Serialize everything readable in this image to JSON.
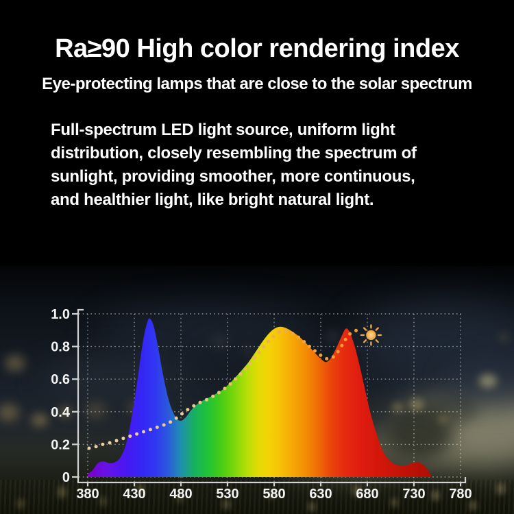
{
  "page": {
    "title": "Ra≥90 High color rendering index",
    "subtitle": "Eye-protecting lamps that are close to the solar spectrum",
    "body_lines": [
      "Full-spectrum LED light source, uniform light",
      "distribution, closely resembling the spectrum of",
      "sunlight, providing smoother, more continuous,",
      "and healthier light, like bright natural light."
    ]
  },
  "chart_data": {
    "type": "area",
    "title": "",
    "xlabel": "",
    "ylabel": "",
    "xlim": [
      380,
      780
    ],
    "ylim": [
      0,
      1.0
    ],
    "grid": true,
    "x_tick_labels": [
      "380",
      "430",
      "480",
      "530",
      "580",
      "630",
      "680",
      "730",
      "780"
    ],
    "x_tick_values": [
      380,
      430,
      480,
      530,
      580,
      630,
      680,
      730,
      780
    ],
    "y_tick_labels": [
      "1.0",
      "0.8",
      "0.6",
      "0.4",
      "0.2",
      "0"
    ],
    "y_tick_values": [
      1.0,
      0.8,
      0.6,
      0.4,
      0.2,
      0
    ],
    "series": [
      {
        "name": "led-full-spectrum",
        "type": "area",
        "fill": "spectrum-gradient",
        "points": [
          [
            380,
            0.02
          ],
          [
            385,
            0.04
          ],
          [
            391,
            0.085
          ],
          [
            397,
            0.095
          ],
          [
            403,
            0.085
          ],
          [
            409,
            0.09
          ],
          [
            415,
            0.12
          ],
          [
            421,
            0.2
          ],
          [
            427,
            0.36
          ],
          [
            433,
            0.58
          ],
          [
            439,
            0.82
          ],
          [
            444,
            0.95
          ],
          [
            447,
            0.97
          ],
          [
            451,
            0.92
          ],
          [
            456,
            0.78
          ],
          [
            461,
            0.62
          ],
          [
            467,
            0.47
          ],
          [
            473,
            0.38
          ],
          [
            479,
            0.345
          ],
          [
            485,
            0.365
          ],
          [
            491,
            0.41
          ],
          [
            497,
            0.445
          ],
          [
            504,
            0.47
          ],
          [
            511,
            0.49
          ],
          [
            519,
            0.515
          ],
          [
            527,
            0.545
          ],
          [
            535,
            0.59
          ],
          [
            543,
            0.64
          ],
          [
            552,
            0.7
          ],
          [
            561,
            0.775
          ],
          [
            570,
            0.85
          ],
          [
            578,
            0.9
          ],
          [
            585,
            0.92
          ],
          [
            592,
            0.915
          ],
          [
            600,
            0.89
          ],
          [
            608,
            0.855
          ],
          [
            616,
            0.81
          ],
          [
            624,
            0.76
          ],
          [
            631,
            0.72
          ],
          [
            636,
            0.705
          ],
          [
            641,
            0.73
          ],
          [
            647,
            0.795
          ],
          [
            653,
            0.87
          ],
          [
            657,
            0.91
          ],
          [
            661,
            0.89
          ],
          [
            666,
            0.81
          ],
          [
            671,
            0.7
          ],
          [
            677,
            0.55
          ],
          [
            683,
            0.4
          ],
          [
            689,
            0.28
          ],
          [
            695,
            0.18
          ],
          [
            701,
            0.12
          ],
          [
            707,
            0.085
          ],
          [
            714,
            0.07
          ],
          [
            721,
            0.07
          ],
          [
            728,
            0.085
          ],
          [
            735,
            0.09
          ],
          [
            741,
            0.07
          ],
          [
            746,
            0.035
          ],
          [
            749,
            0.0
          ]
        ]
      },
      {
        "name": "solar-spectrum-reference",
        "type": "dotted-line",
        "color": "#eec27e",
        "points": [
          [
            380,
            0.175
          ],
          [
            388,
            0.185
          ],
          [
            396,
            0.2
          ],
          [
            404,
            0.21
          ],
          [
            412,
            0.225
          ],
          [
            420,
            0.24
          ],
          [
            428,
            0.255
          ],
          [
            436,
            0.27
          ],
          [
            444,
            0.285
          ],
          [
            452,
            0.3
          ],
          [
            460,
            0.315
          ],
          [
            468,
            0.335
          ],
          [
            476,
            0.365
          ],
          [
            484,
            0.4
          ],
          [
            492,
            0.43
          ],
          [
            500,
            0.455
          ],
          [
            508,
            0.475
          ],
          [
            516,
            0.5
          ],
          [
            524,
            0.53
          ],
          [
            532,
            0.565
          ],
          [
            540,
            0.61
          ],
          [
            548,
            0.655
          ],
          [
            556,
            0.71
          ],
          [
            564,
            0.765
          ],
          [
            572,
            0.82
          ],
          [
            580,
            0.865
          ],
          [
            588,
            0.895
          ],
          [
            596,
            0.89
          ],
          [
            604,
            0.865
          ],
          [
            612,
            0.83
          ],
          [
            620,
            0.79
          ],
          [
            628,
            0.755
          ],
          [
            634,
            0.73
          ],
          [
            640,
            0.725
          ],
          [
            646,
            0.75
          ],
          [
            652,
            0.8
          ],
          [
            658,
            0.855
          ],
          [
            664,
            0.89
          ],
          [
            670,
            0.9
          ]
        ]
      }
    ],
    "sun_marker": {
      "x": 684,
      "y": 0.87,
      "color": "#f4ad52"
    },
    "spectrum_gradient_stops": [
      [
        380,
        "#7b00c8"
      ],
      [
        400,
        "#6712e6"
      ],
      [
        420,
        "#4a17f2"
      ],
      [
        438,
        "#3526f6"
      ],
      [
        452,
        "#3136f2"
      ],
      [
        466,
        "#2b59dd"
      ],
      [
        480,
        "#1f8fae"
      ],
      [
        494,
        "#17b060"
      ],
      [
        508,
        "#1fc13a"
      ],
      [
        522,
        "#43cc17"
      ],
      [
        536,
        "#77d60c"
      ],
      [
        550,
        "#b3de07"
      ],
      [
        562,
        "#e0dc05"
      ],
      [
        574,
        "#f4d306"
      ],
      [
        586,
        "#f7c208"
      ],
      [
        600,
        "#f6a706"
      ],
      [
        614,
        "#f38d05"
      ],
      [
        628,
        "#ef6906"
      ],
      [
        642,
        "#ea420b"
      ],
      [
        656,
        "#e52a10"
      ],
      [
        672,
        "#e01d10"
      ],
      [
        690,
        "#d5170b"
      ],
      [
        715,
        "#c41307"
      ],
      [
        749,
        "#ad0f05"
      ]
    ],
    "dot_gradient_stops": [
      [
        380,
        "#ecd4a4"
      ],
      [
        500,
        "#ecca8a"
      ],
      [
        580,
        "#f0ae50"
      ],
      [
        670,
        "#f59a2e"
      ]
    ],
    "axis_color": "#d2d2d2",
    "grid_color": "#ffffff"
  }
}
